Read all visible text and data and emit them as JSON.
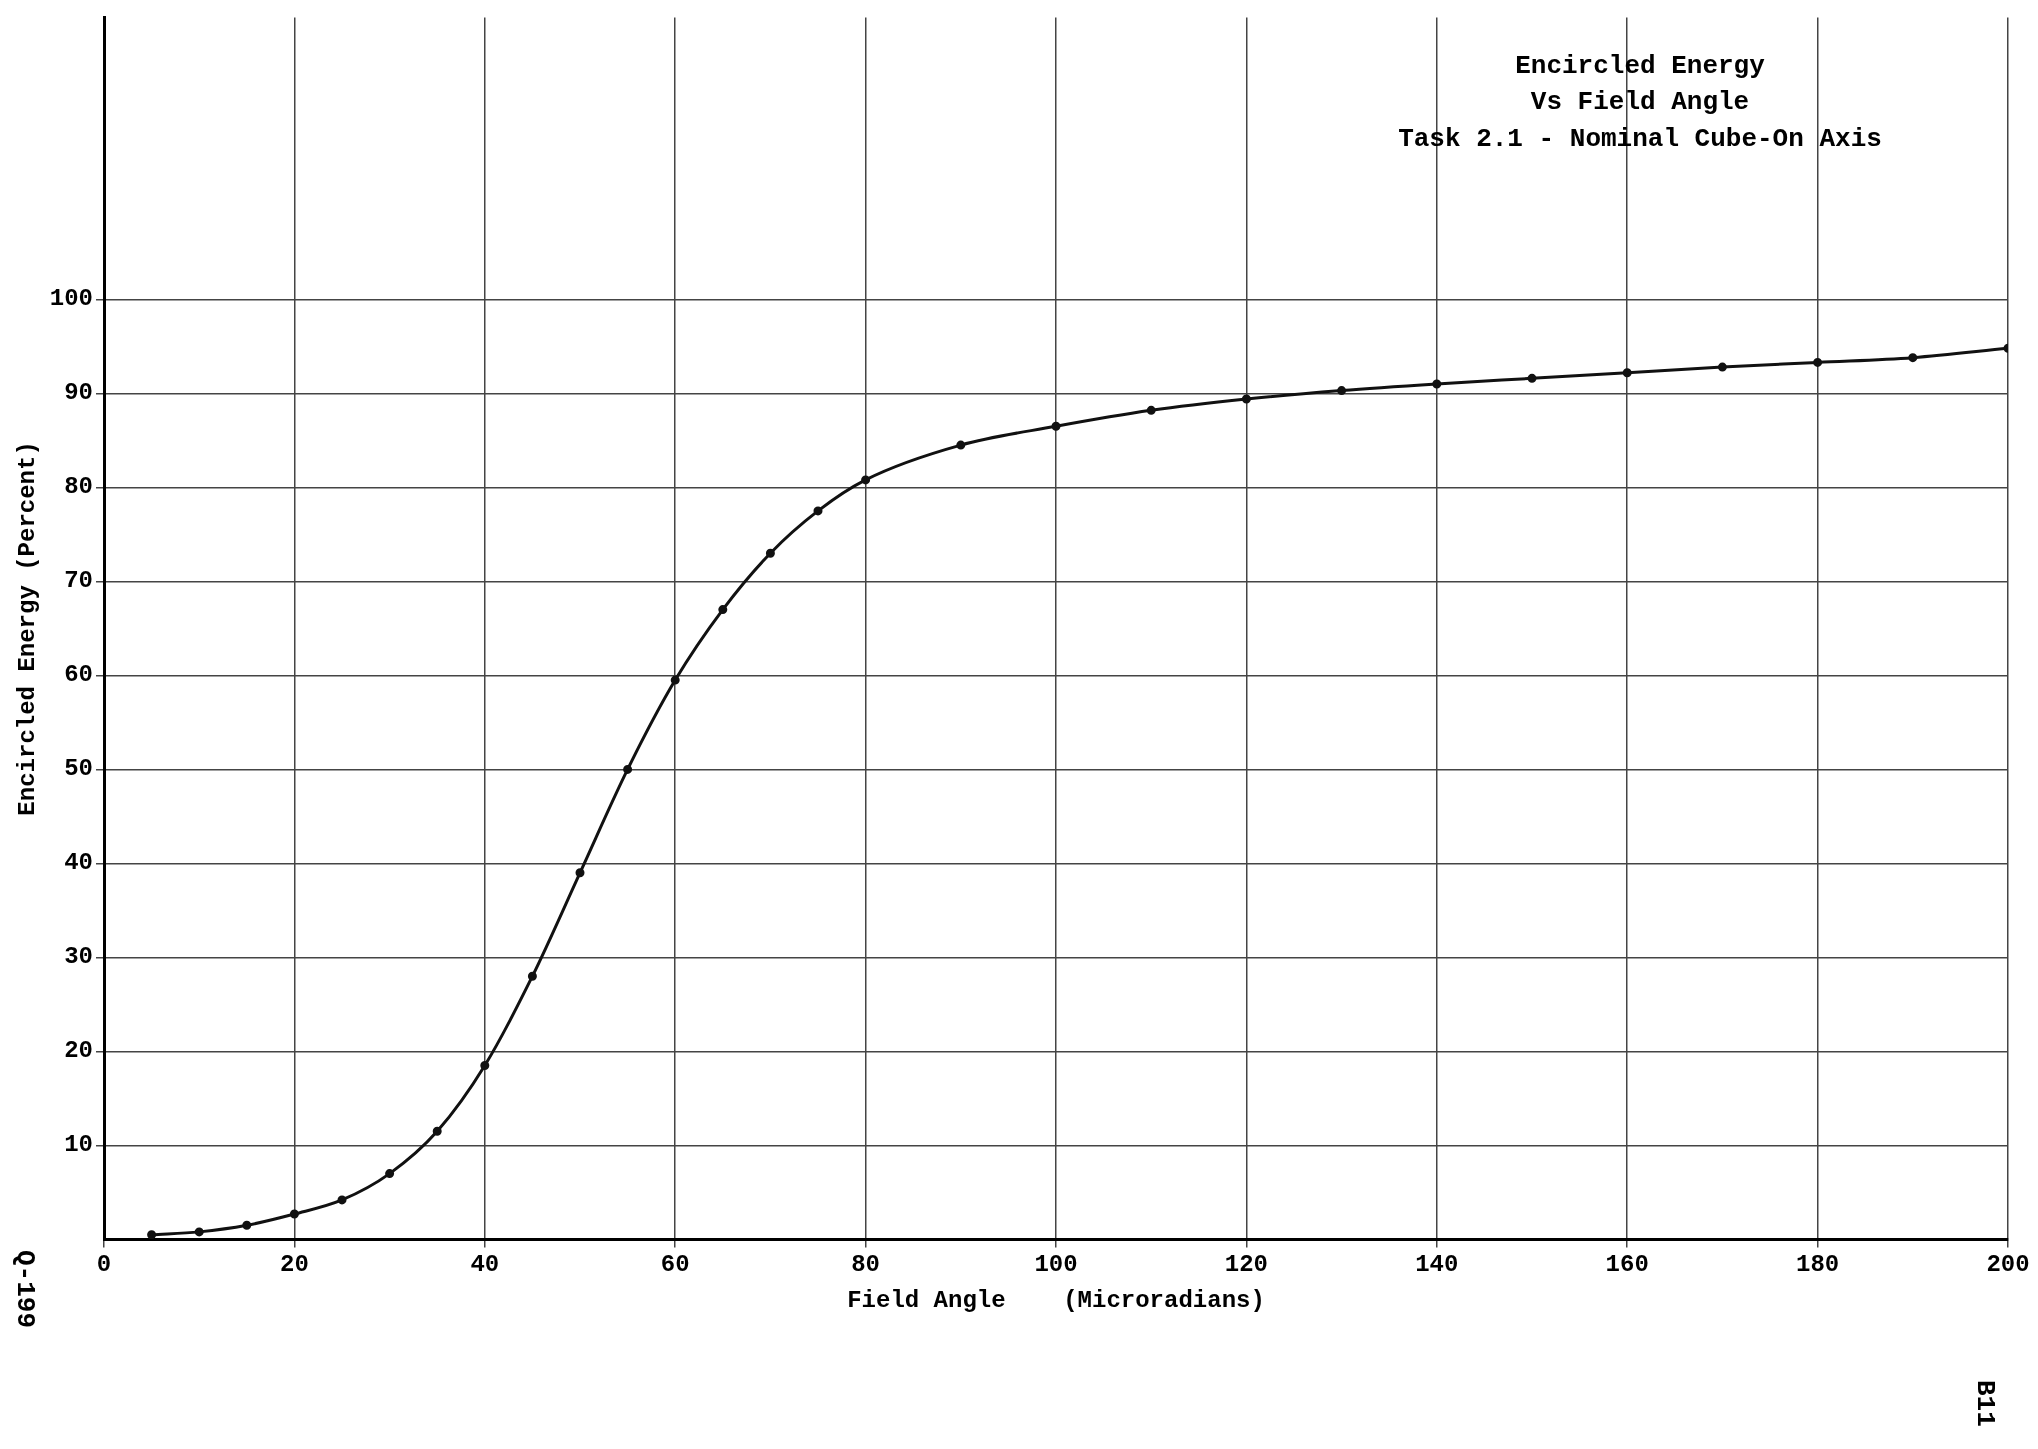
{
  "chart_data": {
    "type": "line",
    "title": "Encircled Energy Vs Field Angle",
    "subtitle": "Task 2.1 - Nominal Cube-On Axis",
    "xlabel": "Field Angle    (Microradians)",
    "ylabel": "Encircled Energy (Percent)",
    "annotations": [
      "Q-199",
      "B11"
    ],
    "x": [
      5,
      10,
      15,
      20,
      25,
      30,
      35,
      40,
      45,
      50,
      55,
      60,
      65,
      70,
      75,
      80,
      90,
      100,
      110,
      120,
      130,
      140,
      150,
      160,
      170,
      180,
      190,
      200
    ],
    "series": [
      {
        "color": "#111111",
        "values": [
          0.5,
          0.8,
          1.5,
          2.7,
          4.2,
          7,
          11.5,
          18.5,
          28,
          39,
          50,
          59.5,
          67,
          73,
          77.5,
          80.8,
          84.5,
          86.5,
          88.2,
          89.4,
          90.3,
          91,
          91.6,
          92.2,
          92.8,
          93.3,
          93.8,
          94.8
        ]
      }
    ],
    "xlim": [
      0,
      200
    ],
    "xticks": [
      0,
      20,
      40,
      60,
      80,
      100,
      120,
      140,
      160,
      180,
      200
    ],
    "ylim": [
      0,
      130
    ],
    "yticks": [
      10,
      20,
      30,
      40,
      50,
      60,
      70,
      80,
      90,
      100
    ],
    "grid": true,
    "legend": false,
    "marker": "circle",
    "line_style": "solid"
  }
}
